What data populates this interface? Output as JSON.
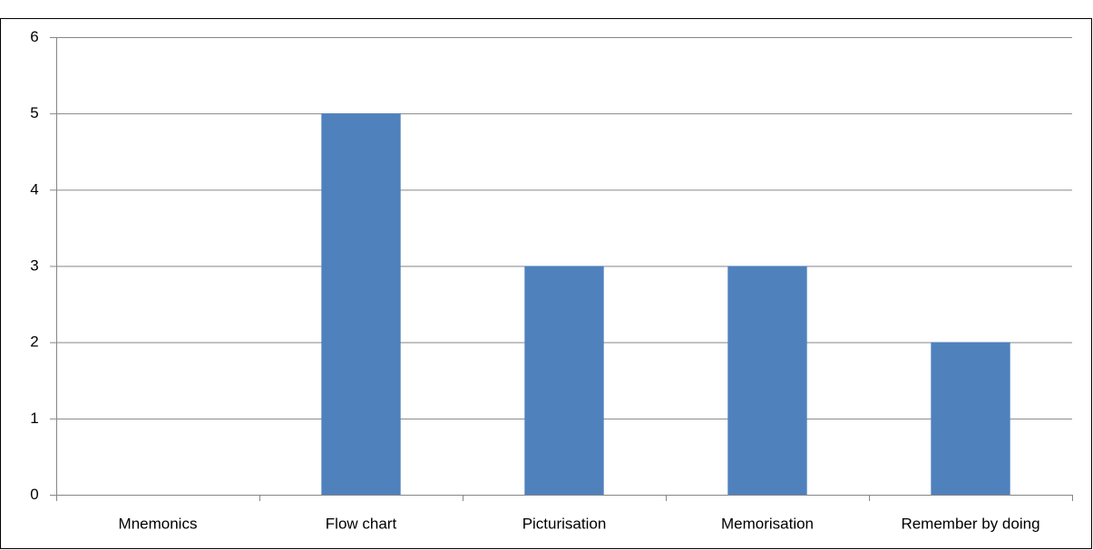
{
  "chart_data": {
    "type": "bar",
    "categories": [
      "Mnemonics",
      "Flow chart",
      "Picturisation",
      "Memorisation",
      "Remember by doing"
    ],
    "values": [
      0,
      5,
      3,
      3,
      2
    ],
    "color": "#4f81bd",
    "ylim": [
      0,
      6
    ],
    "yticks": [
      0,
      1,
      2,
      3,
      4,
      5,
      6
    ],
    "grid": true
  }
}
